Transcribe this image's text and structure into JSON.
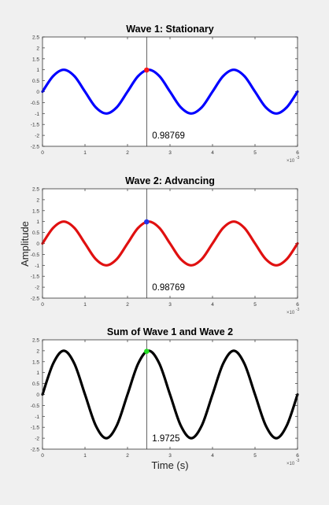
{
  "figure": {
    "ylabel": "Amplitude",
    "xlabel": "Time (s)",
    "x_exponent_label": "×10",
    "x_exponent_power": "-3"
  },
  "chart_data": [
    {
      "type": "line",
      "title": "Wave 1: Stationary",
      "xlabel": "",
      "ylabel": "",
      "xlim": [
        0,
        6
      ],
      "ylim": [
        -2.5,
        2.5
      ],
      "x_tick_labels": [
        "0",
        "1",
        "2",
        "3",
        "4",
        "5",
        "6"
      ],
      "y_tick_labels": [
        "2.5",
        "2",
        "1.5",
        "1",
        "0.5",
        "0",
        "-0.5",
        "-1",
        "-1.5",
        "-2",
        "-2.5"
      ],
      "series": [
        {
          "color": "#0000ff",
          "x": [
            0,
            0.25,
            0.5,
            0.75,
            1.0,
            1.25,
            1.5,
            1.75,
            2.0,
            2.25,
            2.5,
            2.75,
            3.0,
            3.25,
            3.5,
            3.75,
            4.0,
            4.25,
            4.5,
            4.75,
            5.0,
            5.25,
            5.5,
            5.75,
            6.0
          ],
          "y": [
            0,
            0.71,
            1.0,
            0.71,
            0,
            -0.71,
            -1.0,
            -0.71,
            0,
            0.71,
            1.0,
            0.71,
            0,
            -0.71,
            -1.0,
            -0.71,
            0,
            0.71,
            1.0,
            0.71,
            0,
            -0.71,
            -1.0,
            -0.71,
            0
          ]
        }
      ],
      "marker": {
        "x": 2.45,
        "y": 0.98769,
        "color": "#ff1a1a"
      },
      "cursor_x": 2.45,
      "annotation": "0.98769",
      "grid": false
    },
    {
      "type": "line",
      "title": "Wave 2: Advancing",
      "xlabel": "",
      "ylabel": "",
      "xlim": [
        0,
        6
      ],
      "ylim": [
        -2.5,
        2.5
      ],
      "x_tick_labels": [
        "0",
        "1",
        "2",
        "3",
        "4",
        "5",
        "6"
      ],
      "y_tick_labels": [
        "2.5",
        "2",
        "1.5",
        "1",
        "0.5",
        "0",
        "-0.5",
        "-1",
        "-1.5",
        "-2",
        "-2.5"
      ],
      "series": [
        {
          "color": "#e01010",
          "x": [
            0,
            0.25,
            0.5,
            0.75,
            1.0,
            1.25,
            1.5,
            1.75,
            2.0,
            2.25,
            2.5,
            2.75,
            3.0,
            3.25,
            3.5,
            3.75,
            4.0,
            4.25,
            4.5,
            4.75,
            5.0,
            5.25,
            5.5,
            5.75,
            6.0
          ],
          "y": [
            0,
            0.71,
            1.0,
            0.71,
            0,
            -0.71,
            -1.0,
            -0.71,
            0,
            0.71,
            1.0,
            0.71,
            0,
            -0.71,
            -1.0,
            -0.71,
            0,
            0.71,
            1.0,
            0.71,
            0,
            -0.71,
            -1.0,
            -0.71,
            0
          ]
        }
      ],
      "marker": {
        "x": 2.45,
        "y": 0.98769,
        "color": "#2233ee"
      },
      "cursor_x": 2.45,
      "annotation": "0.98769",
      "grid": false
    },
    {
      "type": "line",
      "title": "Sum of Wave 1 and Wave 2",
      "xlabel": "",
      "ylabel": "",
      "xlim": [
        0,
        6
      ],
      "ylim": [
        -2.5,
        2.5
      ],
      "x_tick_labels": [
        "0",
        "1",
        "2",
        "3",
        "4",
        "5",
        "6"
      ],
      "y_tick_labels": [
        "2.5",
        "2",
        "1.5",
        "1",
        "0.5",
        "0",
        "-0.5",
        "-1",
        "-1.5",
        "-2",
        "-2.5"
      ],
      "series": [
        {
          "color": "#000000",
          "x": [
            0,
            0.25,
            0.5,
            0.75,
            1.0,
            1.25,
            1.5,
            1.75,
            2.0,
            2.25,
            2.5,
            2.75,
            3.0,
            3.25,
            3.5,
            3.75,
            4.0,
            4.25,
            4.5,
            4.75,
            5.0,
            5.25,
            5.5,
            5.75,
            6.0
          ],
          "y": [
            0,
            1.41,
            2.0,
            1.41,
            0,
            -1.41,
            -2.0,
            -1.41,
            0,
            1.41,
            2.0,
            1.41,
            0,
            -1.41,
            -2.0,
            -1.41,
            0,
            1.41,
            2.0,
            1.41,
            0,
            -1.41,
            -2.0,
            -1.41,
            0
          ]
        }
      ],
      "marker": {
        "x": 2.45,
        "y": 1.9725,
        "color": "#22dd22"
      },
      "cursor_x": 2.45,
      "annotation": "1.9725",
      "grid": false
    }
  ]
}
